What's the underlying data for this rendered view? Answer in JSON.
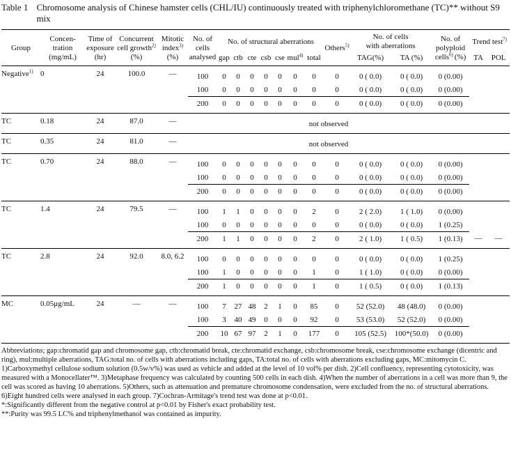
{
  "table": {
    "title": {
      "label": "Table 1",
      "text": "Chromosome analysis of Chinese hamster cells (CHL/IU) continuously treated with triphenylchloromethane (TC)** without S9 mix"
    },
    "header": {
      "group": [
        "Group"
      ],
      "conc": [
        "Concen-",
        "tration",
        "(mg/mL)"
      ],
      "time": [
        "Time of",
        "exposure",
        "(hr)"
      ],
      "growth": [
        "Concurrent",
        {
          "text": "cell growth",
          "sup": "2)"
        },
        "(%)"
      ],
      "mitotic": [
        "Mitotic",
        {
          "text": "index",
          "sup": "3)"
        },
        "(%)"
      ],
      "cells": [
        "No. of",
        "cells",
        "analysed"
      ],
      "structural": {
        "title": [
          "No. of structural aberrations"
        ],
        "sub": [
          "gap",
          "ctb",
          "cte",
          "csb",
          "cse",
          {
            "text": "mul",
            "sup": "4)"
          },
          "total"
        ]
      },
      "others": [
        {
          "text": "Others",
          "sup": "5)"
        }
      ],
      "with_aberrations": {
        "title": [
          "No. of cells",
          "with aberrations"
        ],
        "sub": [
          "TAG(%)",
          "TA (%)"
        ]
      },
      "polyploid": [
        "No. of",
        "polyploid",
        {
          "text": "cells",
          "sup": "6)",
          "tail": "(%)"
        }
      ],
      "trend": {
        "title": [
          {
            "text": "Trend test",
            "sup": "7)"
          }
        ],
        "sub": [
          "TA",
          "POL"
        ]
      }
    },
    "groups": [
      {
        "group": {
          "text": "Negative",
          "sup": "1)"
        },
        "conc": "0",
        "time": "24",
        "growth": "100.0",
        "mitotic": "—",
        "rows": [
          {
            "cells": [
              "100",
              "0",
              "0",
              "0",
              "0",
              "0",
              "0",
              "0",
              "0",
              "0 ( 0.0)",
              "0 ( 0.0)",
              "0 (0.00)"
            ]
          },
          {
            "cells": [
              "100",
              "0",
              "0",
              "0",
              "0",
              "0",
              "0",
              "0",
              "0",
              "0 ( 0.0)",
              "0 ( 0.0)",
              "0 (0.00)"
            ]
          },
          {
            "cells": [
              "200",
              "0",
              "0",
              "0",
              "0",
              "0",
              "0",
              "0",
              "0",
              "0 ( 0.0)",
              "0 ( 0.0)",
              "0 (0.00)"
            ]
          }
        ]
      },
      {
        "group": "TC",
        "conc": "0.18",
        "time": "24",
        "growth": "87.0",
        "mitotic": "—",
        "status": "not observed"
      },
      {
        "group": "TC",
        "conc": "0.35",
        "time": "24",
        "growth": "81.0",
        "mitotic": "—",
        "status": "not observed"
      },
      {
        "group": "TC",
        "conc": "0.70",
        "time": "24",
        "growth": "88.0",
        "mitotic": "—",
        "rows": [
          {
            "cells": [
              "100",
              "0",
              "0",
              "0",
              "0",
              "0",
              "0",
              "0",
              "0",
              "0 ( 0.0)",
              "0 ( 0.0)",
              "0 (0.00)"
            ]
          },
          {
            "cells": [
              "100",
              "0",
              "0",
              "0",
              "0",
              "0",
              "0",
              "0",
              "0",
              "0 ( 0.0)",
              "0 ( 0.0)",
              "0 (0.00)"
            ]
          },
          {
            "cells": [
              "200",
              "0",
              "0",
              "0",
              "0",
              "0",
              "0",
              "0",
              "0",
              "0 ( 0.0)",
              "0 ( 0.0)",
              "0 (0.00)"
            ]
          }
        ]
      },
      {
        "group": "TC",
        "conc": "1.4",
        "time": "24",
        "growth": "79.5",
        "mitotic": "—",
        "rows": [
          {
            "cells": [
              "100",
              "1",
              "1",
              "0",
              "0",
              "0",
              "0",
              "2",
              "0",
              "2 ( 2.0)",
              "1 ( 1.0)",
              "0 (0.00)"
            ]
          },
          {
            "cells": [
              "100",
              "0",
              "0",
              "0",
              "0",
              "0",
              "0",
              "0",
              "0",
              "0 ( 0.0)",
              "0 ( 0.0)",
              "1 (0.25)"
            ]
          },
          {
            "cells": [
              "200",
              "1",
              "1",
              "0",
              "0",
              "0",
              "0",
              "2",
              "0",
              "2 ( 1.0)",
              "1 ( 0.5)",
              "1 (0.13)"
            ],
            "trend": [
              "—",
              "—"
            ]
          }
        ]
      },
      {
        "group": "TC",
        "conc": "2.8",
        "time": "24",
        "growth": "92.0",
        "mitotic": "8.0, 6.2",
        "rows": [
          {
            "cells": [
              "100",
              "0",
              "0",
              "0",
              "0",
              "0",
              "0",
              "0",
              "0",
              "0 ( 0.0)",
              "0 ( 0.0)",
              "1 (0.25)"
            ]
          },
          {
            "cells": [
              "100",
              "1",
              "0",
              "0",
              "0",
              "0",
              "0",
              "1",
              "0",
              "1 ( 1.0)",
              "0 ( 0.0)",
              "0 (0.00)"
            ]
          },
          {
            "cells": [
              "200",
              "1",
              "0",
              "0",
              "0",
              "0",
              "0",
              "1",
              "0",
              "1 ( 0.5)",
              "0 ( 0.0)",
              "1 (0.13)"
            ]
          }
        ]
      },
      {
        "group": "MC",
        "conc": "0.05μg/mL",
        "time": "24",
        "growth": "—",
        "mitotic": "—",
        "rows": [
          {
            "cells": [
              "100",
              "7",
              "27",
              "48",
              "2",
              "1",
              "0",
              "85",
              "0",
              "52 (52.0)",
              "48 (48.0)",
              "0 (0.00)"
            ]
          },
          {
            "cells": [
              "100",
              "3",
              "40",
              "49",
              "0",
              "0",
              "0",
              "92",
              "0",
              "53 (53.0)",
              "52 (52.0)",
              "0 (0.00)"
            ]
          },
          {
            "cells": [
              "200",
              "10",
              "67",
              "97",
              "2",
              "1",
              "0",
              "177",
              "0",
              "105 (52.5)",
              "100*(50.0)",
              "0 (0.00)"
            ]
          }
        ]
      }
    ],
    "footnotes": [
      "Abbreviations; gap:chromatid gap and chromosome gap, ctb:chromatid break, cte:chromatid exchange, csb:chromosome break, cse:chromosome exchange (dicentric and ring), mul:multiple aberrations, TAG:total no. of cells with aberrations including gaps, TA:total no. of cells with aberrations excluding gaps, MC:mitomycin C.",
      "1)Carboxymethyl cellulose sodium solution (0.5w/v%) was used as vehicle and added at the level of 10 vol% per dish. 2)Cell confluency, representing cytotoxicity, was measured with a Monocellater™. 3)Metaphase frequency was calculated by counting 500 cells in each dish. 4)When the number of aberrations in a cell was more than 9, the cell was scored as having 10 aberrations. 5)Others, such as attenuation and premature chromosome condensation, were excluded from the no. of structural aberrations. 6)Eight hundred cells were analysed in each group. 7)Cochran-Armitage's trend test was done at p<0.01.",
      "*:Significantly different from the negative control at p<0.01 by Fisher's exact probability test.",
      "**:Purity was 99.5 LC% and triphenylmethanol was contained as impurity."
    ]
  }
}
